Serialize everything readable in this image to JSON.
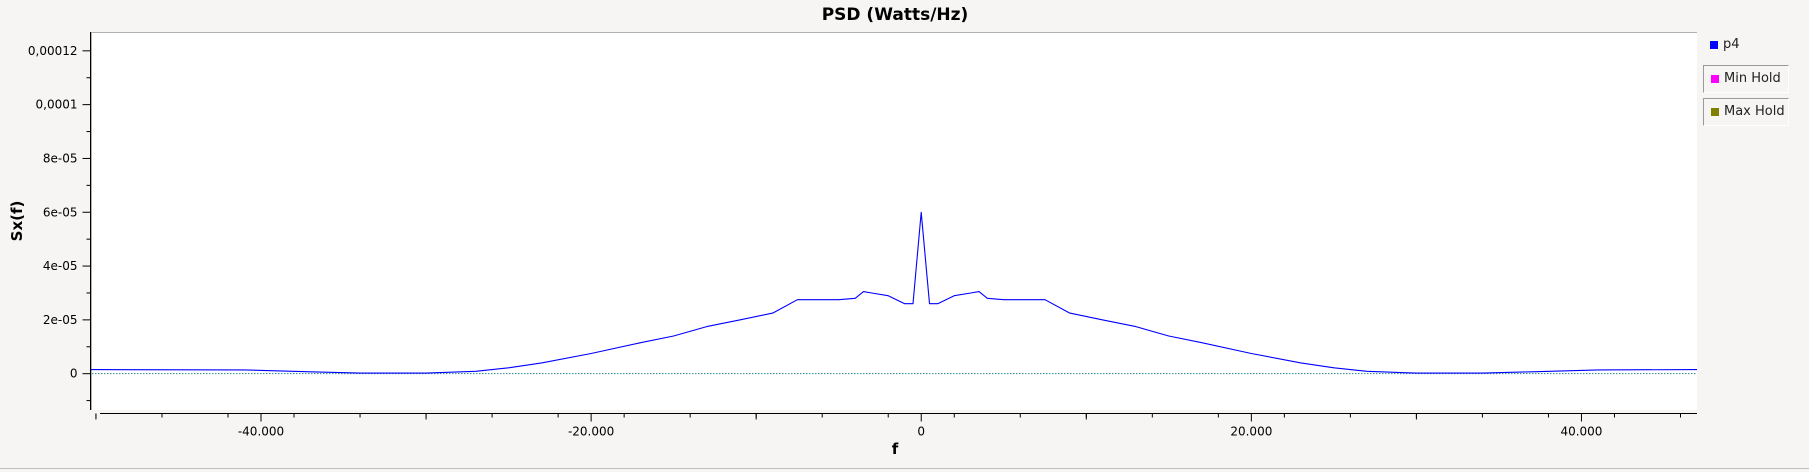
{
  "chart_data": {
    "type": "line",
    "title": "PSD (Watts/Hz)",
    "xlabel": "f",
    "ylabel": "Sx(f)",
    "xlim": [
      -50300,
      47000
    ],
    "ylim": [
      -1.35e-05,
      0.000127
    ],
    "x_ticks": [
      -40000,
      -20000,
      0,
      20000,
      40000
    ],
    "x_tick_labels": [
      "-40.000",
      "-20.000",
      "0",
      "20.000",
      "40.000"
    ],
    "y_ticks": [
      0,
      2e-05,
      4e-05,
      6e-05,
      8e-05,
      0.0001,
      0.00012
    ],
    "y_tick_labels": [
      "0",
      "2e-05",
      "4e-05",
      "6e-05",
      "8e-05",
      "0,0001",
      "0,00012"
    ],
    "grid": false,
    "legend_position": "right",
    "series": [
      {
        "name": "p4",
        "color": "#0000ff",
        "x": [
          -50300,
          -41000,
          -37000,
          -34000,
          -30000,
          -27000,
          -25000,
          -23000,
          -20000,
          -17000,
          -15000,
          -13000,
          -11000,
          -9000,
          -7500,
          -5000,
          -4000,
          -3500,
          -3000,
          -2000,
          -1000,
          -500,
          0,
          500,
          1000,
          2000,
          3000,
          3500,
          4000,
          5000,
          7500,
          9000,
          11000,
          13000,
          15000,
          17000,
          20000,
          23000,
          25000,
          27000,
          30000,
          34000,
          37000,
          41000,
          47000
        ],
        "y": [
          1.5e-06,
          1.4e-06,
          7e-07,
          2e-07,
          2e-07,
          9e-07,
          2.2e-06,
          4e-06,
          7.5e-06,
          1.15e-05,
          1.4e-05,
          1.75e-05,
          2e-05,
          2.25e-05,
          2.75e-05,
          2.75e-05,
          2.8e-05,
          3.05e-05,
          3e-05,
          2.9e-05,
          2.6e-05,
          2.6e-05,
          6e-05,
          2.6e-05,
          2.6e-05,
          2.9e-05,
          3e-05,
          3.05e-05,
          2.8e-05,
          2.75e-05,
          2.75e-05,
          2.25e-05,
          2e-05,
          1.75e-05,
          1.4e-05,
          1.15e-05,
          7.5e-06,
          4e-06,
          2.2e-06,
          9e-07,
          2e-07,
          2e-07,
          7e-07,
          1.4e-06,
          1.5e-06
        ]
      },
      {
        "name": "Min Hold",
        "color": "#ff00ff",
        "x": [],
        "y": []
      },
      {
        "name": "Max Hold",
        "color": "#808000",
        "x": [],
        "y": []
      }
    ],
    "zero_line_color": "#2a8a8a"
  }
}
